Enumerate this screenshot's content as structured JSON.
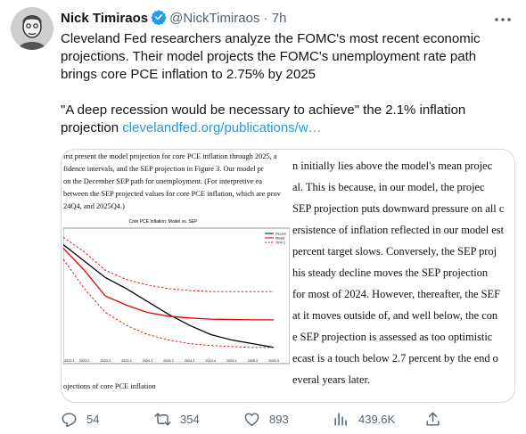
{
  "author": {
    "name": "Nick Timiraos",
    "handle": "@NickTimiraos",
    "separator": "·",
    "time": "7h"
  },
  "tweet": {
    "paragraph1": "Cleveland Fed researchers analyze the FOMC's most recent economic projections. Their model projects the FOMC's unemployment rate path brings core PCE inflation to 2.75% by 2025",
    "paragraph2_text": "\"A deep recession would be necessary to achieve\" the 2.1% inflation projection ",
    "link": "clevelandfed.org/publications/w…"
  },
  "media": {
    "left_lines": [
      "irst present the model projection for core PCE inflation through 2025, a",
      "fidence intervals, and the SEP projection in Figure 3. Our model pr",
      "on the December SEP path for unemployment. (For interpretive ea",
      "between the SEP projected values for core PCE inflation, which are prov",
      "24Q4, and 2025Q4.)"
    ],
    "caption": "ojections of core PCE inflation",
    "right_lines": [
      "n initially lies above the model's mean projec",
      "al. This is because, in our model, the projec",
      "SEP projection puts downward pressure on all c",
      "ersistence of inflation reflected in our model est",
      "percent target slows. Conversely, the SEP proj",
      "his steady decline moves the SEP projection",
      "for most of 2024. However, thereafter, the SEF",
      "at it moves outside of, and well below, the con",
      "e SEP projection is assessed as too optimistic",
      "ecast is a touch below 2.7 percent by the end o",
      "everal years later."
    ]
  },
  "chart_data": {
    "type": "line",
    "title": "Core PCE Inflation: Model vs. SEP",
    "categories": [
      "2023.1",
      "2023.2",
      "2023.3",
      "2023.4",
      "2024.1",
      "2024.2",
      "2024.3",
      "2024.4",
      "2025.1",
      "2025.2",
      "2025.3"
    ],
    "series": [
      {
        "name": "Decem",
        "color": "#000000",
        "values": [
          4.8,
          4.35,
          3.9,
          3.6,
          3.25,
          2.9,
          2.6,
          2.35,
          2.2,
          2.1,
          2.0
        ]
      },
      {
        "name": "Model",
        "color": "#e00000",
        "values": [
          4.7,
          4.1,
          3.4,
          3.15,
          2.95,
          2.85,
          2.8,
          2.77,
          2.76,
          2.75,
          2.75
        ]
      },
      {
        "name": "70% C",
        "color": "#e00000",
        "dashed": true,
        "values": [
          5.0,
          4.6,
          4.1,
          3.85,
          3.7,
          3.6,
          3.55,
          3.52,
          3.52,
          3.52,
          3.52
        ]
      },
      {
        "name": "70% C",
        "color": "#e00000",
        "dashed": true,
        "values": [
          4.4,
          3.6,
          2.95,
          2.6,
          2.35,
          2.2,
          2.1,
          2.05,
          2.02,
          2.0,
          2.0
        ]
      }
    ],
    "ylim": [
      1.8,
      5.2
    ],
    "grid": false,
    "legend": "top-right"
  },
  "actions": {
    "reply_count": "54",
    "retweet_count": "354",
    "like_count": "893",
    "view_count": "439.6K"
  },
  "colors": {
    "link": "#1d9bf0",
    "verified": "#1d9bf0",
    "secondary_text": "#536471"
  }
}
